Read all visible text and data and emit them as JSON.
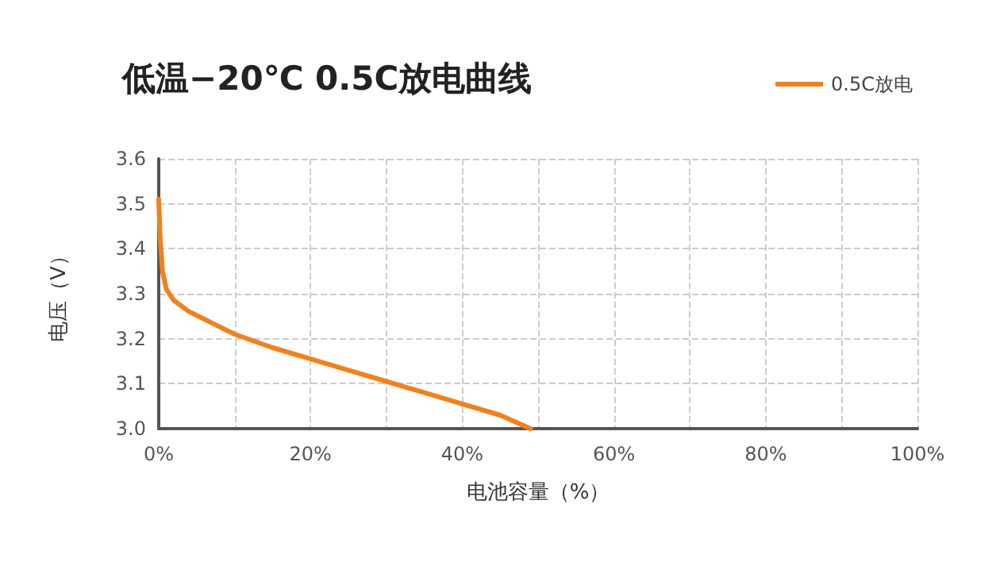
{
  "chart_data": {
    "type": "line",
    "title": "低温−20℃ 0.5C放电曲线",
    "xlabel": "电池容量（%）",
    "ylabel": "电压（V）",
    "x": [
      0,
      0.2,
      0.5,
      1,
      2,
      4,
      7,
      10,
      15,
      20,
      25,
      30,
      35,
      40,
      45,
      49
    ],
    "series": [
      {
        "name": "0.5C放电",
        "color": "#f0821e",
        "values": [
          3.51,
          3.42,
          3.35,
          3.31,
          3.285,
          3.26,
          3.235,
          3.21,
          3.18,
          3.155,
          3.13,
          3.105,
          3.08,
          3.055,
          3.03,
          3.0
        ]
      }
    ],
    "xlim": [
      0,
      100
    ],
    "xticks": [
      {
        "value": 0,
        "label": "0%"
      },
      {
        "value": 10,
        "label": null
      },
      {
        "value": 20,
        "label": "20%"
      },
      {
        "value": 30,
        "label": null
      },
      {
        "value": 40,
        "label": "40%"
      },
      {
        "value": 50,
        "label": null
      },
      {
        "value": 60,
        "label": "60%"
      },
      {
        "value": 70,
        "label": null
      },
      {
        "value": 80,
        "label": "80%"
      },
      {
        "value": 90,
        "label": null
      },
      {
        "value": 100,
        "label": "100%"
      }
    ],
    "ylim": [
      3.0,
      3.6
    ],
    "yticks": [
      {
        "value": 3.0,
        "label": "3.0"
      },
      3.1,
      3.2,
      3.3,
      3.4,
      3.5,
      3.6
    ],
    "grid": true,
    "legend": "top right",
    "marker": "none",
    "line_style": "solid"
  }
}
